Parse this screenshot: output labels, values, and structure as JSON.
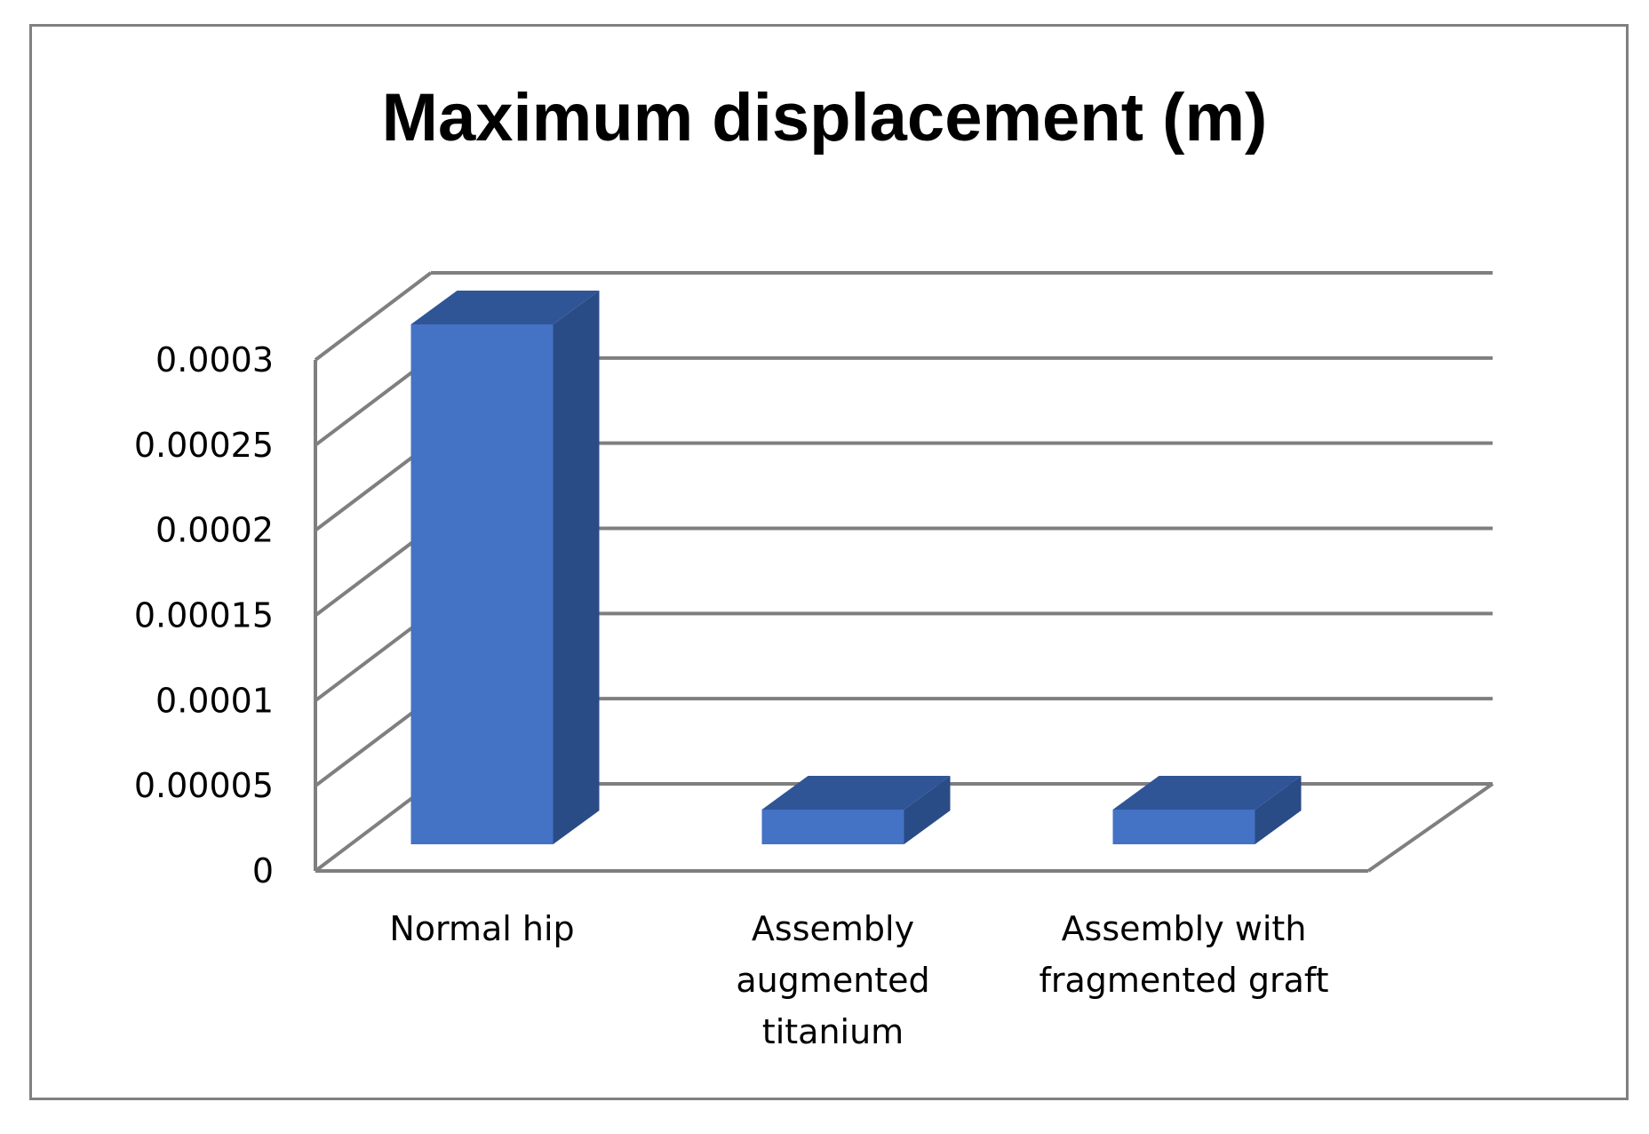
{
  "chart_data": {
    "type": "bar",
    "title": "Maximum displacement (m)",
    "xlabel": "",
    "ylabel": "",
    "categories": [
      [
        "Normal hip"
      ],
      [
        "Assembly",
        "augmented",
        "titanium"
      ],
      [
        "Assembly with",
        "fragmented graft"
      ]
    ],
    "values": [
      0.0003,
      2e-05,
      2e-05
    ],
    "ylim": [
      0,
      0.0003
    ],
    "yticks": [
      "0",
      "0.00005",
      "0.0001",
      "0.00015",
      "0.0002",
      "0.00025",
      "0.0003"
    ],
    "grid": true,
    "three_d": true,
    "legend": "none",
    "colors": {
      "bar_front": "#4472C4",
      "bar_top": "#2F5597",
      "bar_side": "#2A4C86",
      "grid": "#7F7F7F",
      "frame": "#808080"
    }
  }
}
